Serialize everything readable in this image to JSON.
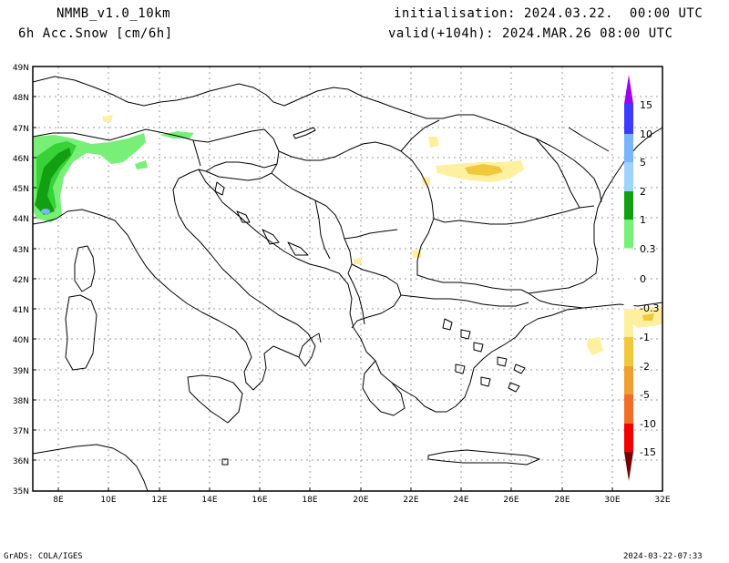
{
  "header": {
    "model": "NMMB_v1.0_10km",
    "variable": "6h Acc.Snow [cm/6h]",
    "init": "initialisation: 2024.03.22.  00:00 UTC",
    "valid": "valid(+104h): 2024.MAR.26 08:00 UTC"
  },
  "footer": {
    "left": "GrADS: COLA/IGES",
    "right": "2024-03-22-07:33"
  },
  "axes": {
    "lat_labels": [
      "49N",
      "48N",
      "47N",
      "46N",
      "45N",
      "44N",
      "43N",
      "42N",
      "41N",
      "40N",
      "39N",
      "38N",
      "37N",
      "36N",
      "35N"
    ],
    "lon_labels": [
      "8E",
      "10E",
      "12E",
      "14E",
      "16E",
      "18E",
      "20E",
      "22E",
      "24E",
      "26E",
      "28E",
      "30E",
      "32E"
    ]
  },
  "colorbar": {
    "labels": [
      "15",
      "10",
      "5",
      "2",
      "1",
      "0.3",
      "0",
      "-0.3",
      "-1",
      "-2",
      "-5",
      "-10",
      "-15"
    ],
    "colors": [
      "#a000f0",
      "#3c3cff",
      "#78b4ff",
      "#a0d2ff",
      "#12a012",
      "#78f078",
      "#ffffff",
      "#fff0a0",
      "#f0c83c",
      "#f0a032",
      "#f06e28",
      "#f00000",
      "#b40000",
      "#780000"
    ]
  },
  "snow_colors": {
    "light": "#78f078",
    "medium": "#37d237",
    "dark": "#12a012",
    "blue": "#78b4ff",
    "neg_light": "#fff0a0",
    "neg_mid": "#f0c83c"
  }
}
